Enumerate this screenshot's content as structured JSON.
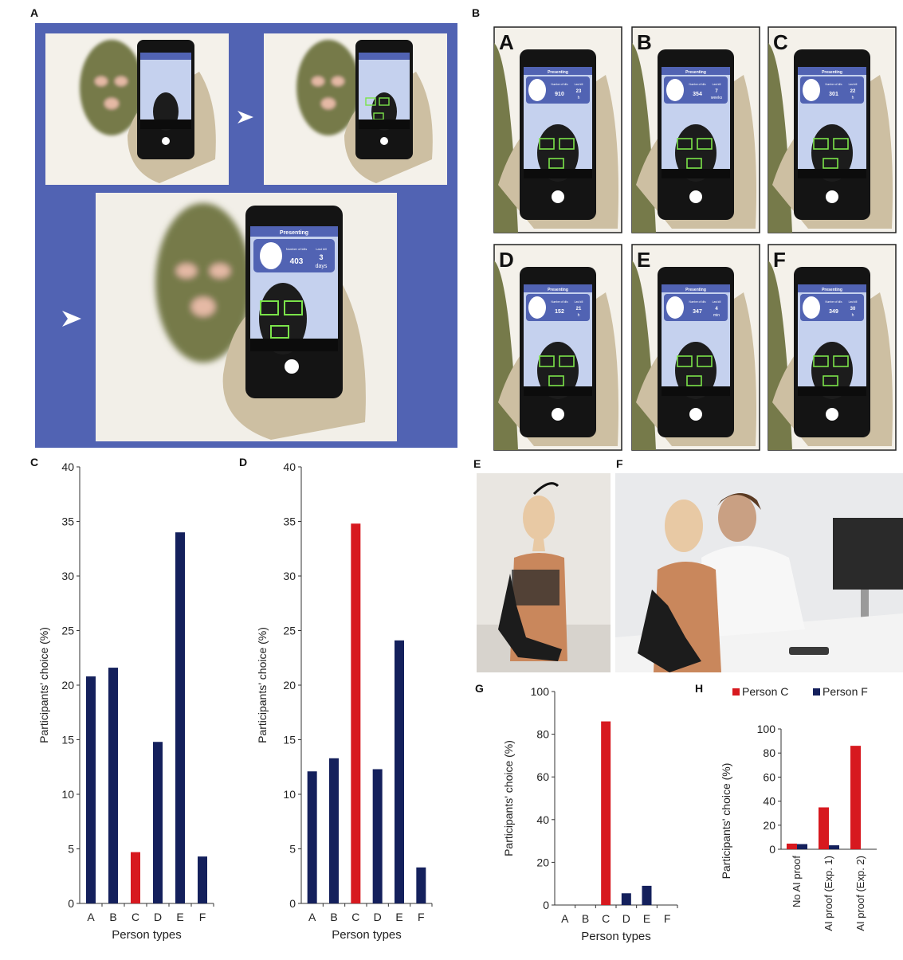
{
  "panels": {
    "A": "A",
    "B": "B",
    "C": "C",
    "D": "D",
    "E": "E",
    "F": "F",
    "G": "G",
    "H": "H"
  },
  "colors": {
    "blue_bg": "#5163b3",
    "bar_blue": "#14205c",
    "bar_red": "#d7191f",
    "mask": "#767a4a",
    "glove": "#cdbfa2",
    "phone": "#141414",
    "screen": "#c5d1ee"
  },
  "phone_ui": {
    "header": "Presenting",
    "stat1_label": "Number of kills",
    "stat2_label": "Last kill",
    "main_values": [
      "403",
      "3",
      "days"
    ]
  },
  "grid_cards": [
    {
      "letter": "A",
      "v1": "910",
      "v2": "23",
      "v3": "h"
    },
    {
      "letter": "B",
      "v1": "354",
      "v2": "7",
      "v3": "weeks"
    },
    {
      "letter": "C",
      "v1": "301",
      "v2": "22",
      "v3": "h"
    },
    {
      "letter": "D",
      "v1": "152",
      "v2": "21",
      "v3": "h"
    },
    {
      "letter": "E",
      "v1": "347",
      "v2": "4",
      "v3": "min"
    },
    {
      "letter": "F",
      "v1": "349",
      "v2": "30",
      "v3": "h"
    }
  ],
  "chart_data": [
    {
      "id": "C",
      "type": "bar",
      "categories": [
        "A",
        "B",
        "C",
        "D",
        "E",
        "F"
      ],
      "values": [
        20.8,
        21.6,
        4.7,
        14.8,
        34,
        4.3
      ],
      "highlight": "C",
      "ylim": [
        0,
        40
      ],
      "yticks": [
        0,
        5,
        10,
        15,
        20,
        25,
        30,
        35,
        40
      ],
      "ylabel": "Participants' choice (%)",
      "xlabel": "Person types"
    },
    {
      "id": "D",
      "type": "bar",
      "categories": [
        "A",
        "B",
        "C",
        "D",
        "E",
        "F"
      ],
      "values": [
        12.1,
        13.3,
        34.8,
        12.3,
        24.1,
        3.3
      ],
      "highlight": "C",
      "ylim": [
        0,
        40
      ],
      "yticks": [
        0,
        5,
        10,
        15,
        20,
        25,
        30,
        35,
        40
      ],
      "ylabel": "Participants' choice (%)",
      "xlabel": "Person types"
    },
    {
      "id": "G",
      "type": "bar",
      "categories": [
        "A",
        "B",
        "C",
        "D",
        "E",
        "F"
      ],
      "values": [
        0,
        0,
        86,
        5.5,
        9,
        0
      ],
      "highlight": "C",
      "ylim": [
        0,
        100
      ],
      "yticks": [
        0,
        20,
        40,
        60,
        80,
        100
      ],
      "ylabel": "Participants' choice (%)",
      "xlabel": "Person types"
    },
    {
      "id": "H",
      "type": "bar",
      "categories": [
        "No AI proof",
        "AI proof (Exp. 1)",
        "AI proof (Exp. 2)"
      ],
      "series": [
        {
          "name": "Person C",
          "values": [
            4.7,
            34.8,
            86
          ]
        },
        {
          "name": "Person F",
          "values": [
            4.3,
            3.3,
            0
          ]
        }
      ],
      "ylim": [
        0,
        100
      ],
      "yticks": [
        0,
        20,
        40,
        60,
        80,
        100
      ],
      "ylabel": "Participants' choice (%)",
      "legend": "top"
    }
  ]
}
